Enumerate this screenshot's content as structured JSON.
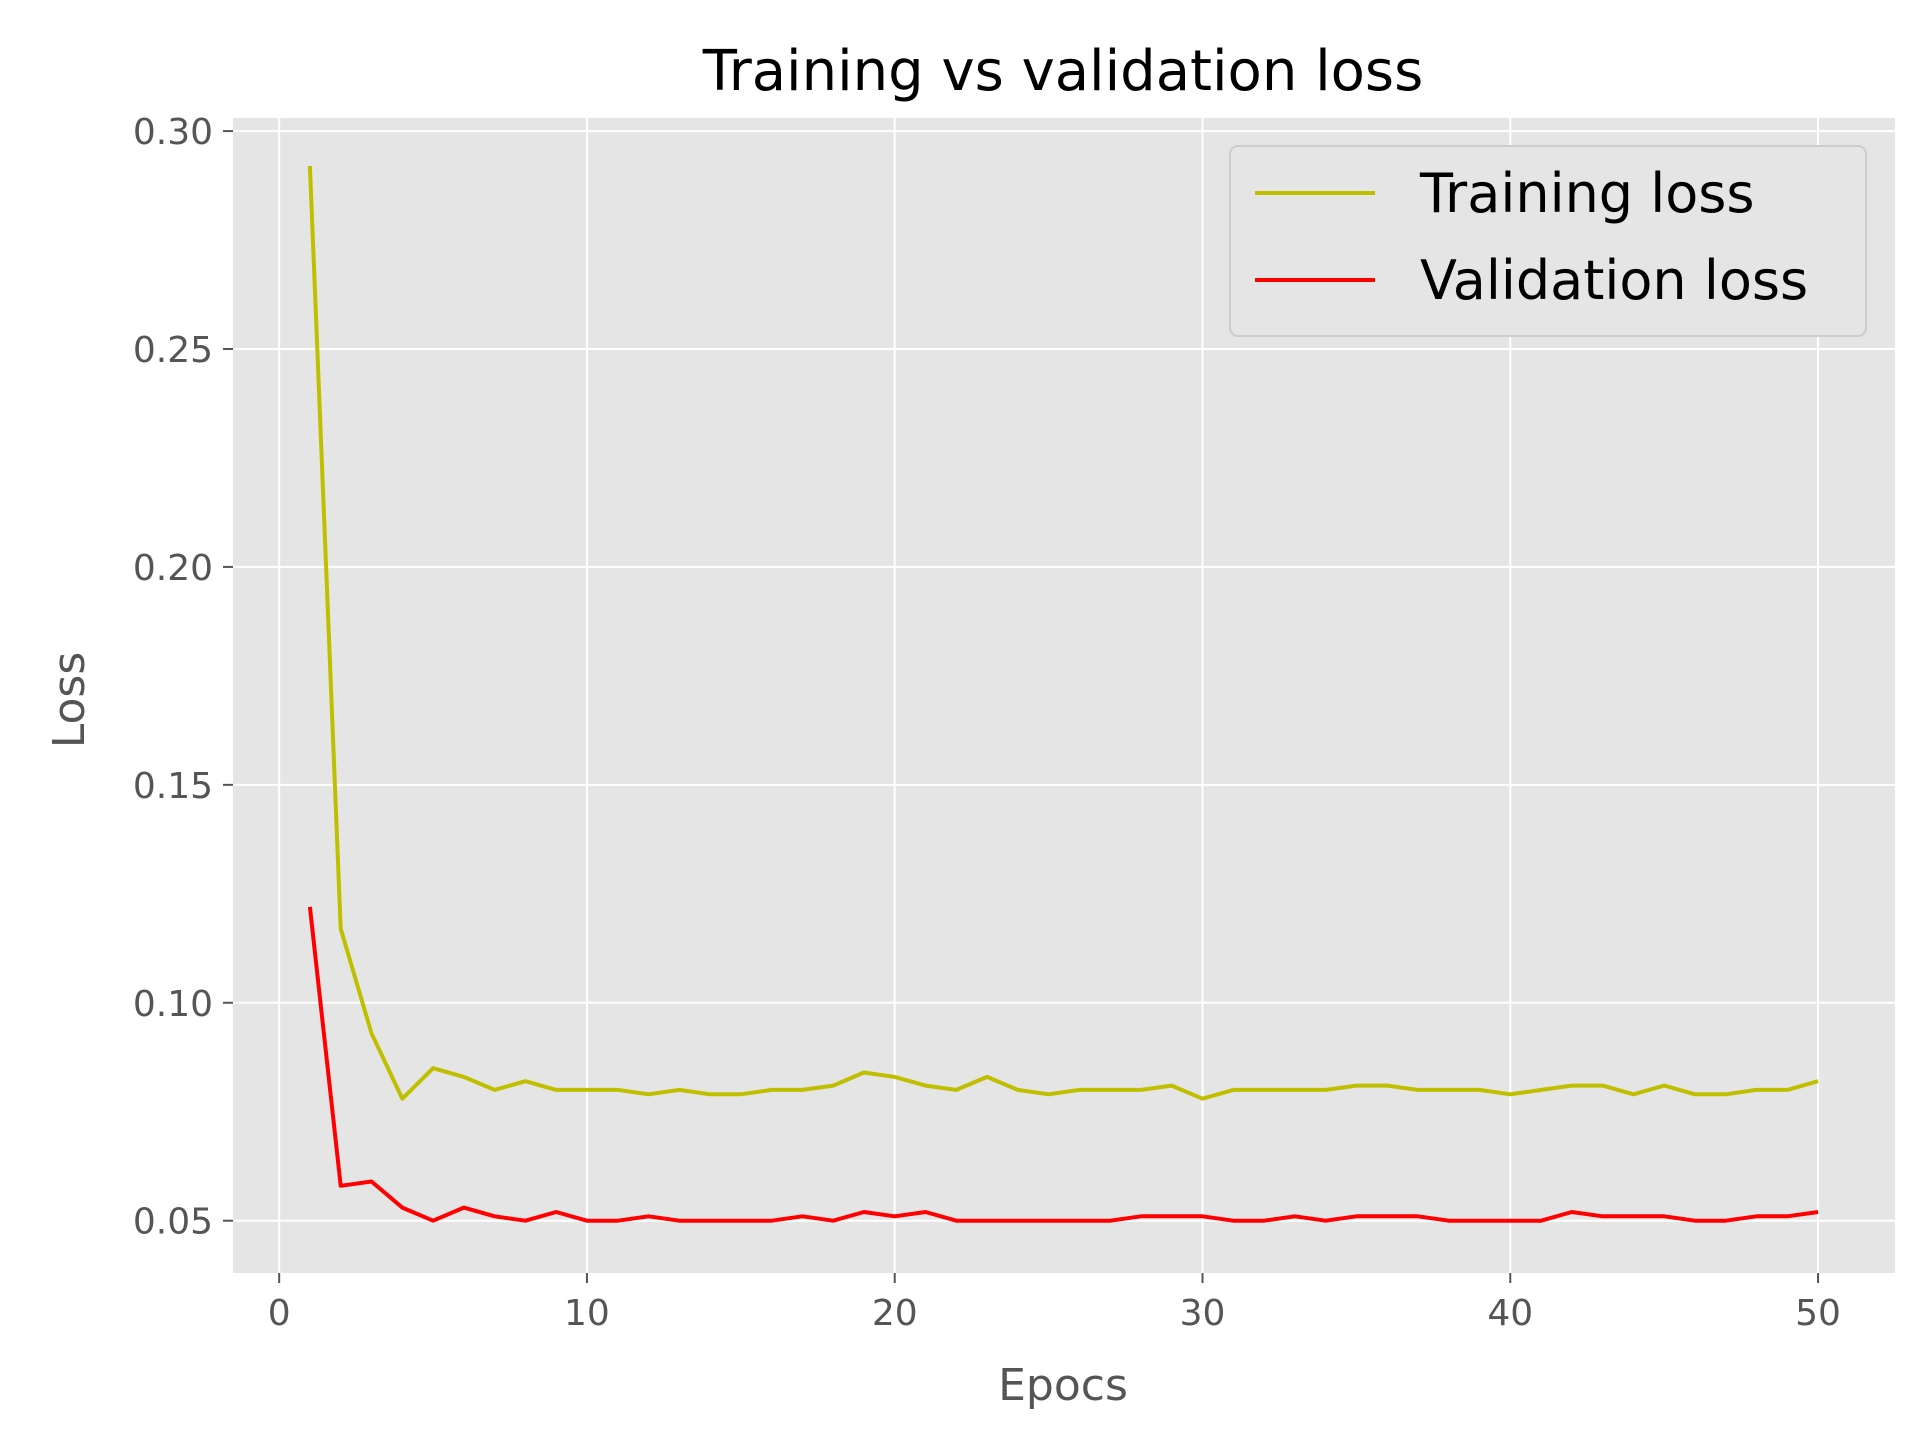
{
  "chart_data": {
    "type": "line",
    "title": "Training vs validation loss",
    "xlabel": "Epocs",
    "ylabel": "Loss",
    "xlim": [
      -1.5,
      52.5
    ],
    "ylim": [
      0.038,
      0.303
    ],
    "xticks": [
      0,
      10,
      20,
      30,
      40,
      50
    ],
    "xtick_labels": [
      "0",
      "10",
      "20",
      "30",
      "40",
      "50"
    ],
    "yticks": [
      0.05,
      0.1,
      0.15,
      0.2,
      0.25,
      0.3
    ],
    "ytick_labels": [
      "0.05",
      "0.10",
      "0.15",
      "0.20",
      "0.25",
      "0.30"
    ],
    "grid": true,
    "legend_position": "top-right",
    "x": [
      1,
      2,
      3,
      4,
      5,
      6,
      7,
      8,
      9,
      10,
      11,
      12,
      13,
      14,
      15,
      16,
      17,
      18,
      19,
      20,
      21,
      22,
      23,
      24,
      25,
      26,
      27,
      28,
      29,
      30,
      31,
      32,
      33,
      34,
      35,
      36,
      37,
      38,
      39,
      40,
      41,
      42,
      43,
      44,
      45,
      46,
      47,
      48,
      49,
      50
    ],
    "series": [
      {
        "name": "Training loss",
        "color": "#bfbf00",
        "values": [
          0.292,
          0.117,
          0.093,
          0.078,
          0.085,
          0.083,
          0.08,
          0.082,
          0.08,
          0.08,
          0.08,
          0.079,
          0.08,
          0.079,
          0.079,
          0.08,
          0.08,
          0.081,
          0.084,
          0.083,
          0.081,
          0.08,
          0.083,
          0.08,
          0.079,
          0.08,
          0.08,
          0.08,
          0.081,
          0.078,
          0.08,
          0.08,
          0.08,
          0.08,
          0.081,
          0.081,
          0.08,
          0.08,
          0.08,
          0.079,
          0.08,
          0.081,
          0.081,
          0.079,
          0.081,
          0.079,
          0.079,
          0.08,
          0.08,
          0.082
        ]
      },
      {
        "name": "Validation loss",
        "color": "#ff0000",
        "values": [
          0.122,
          0.058,
          0.059,
          0.053,
          0.05,
          0.053,
          0.051,
          0.05,
          0.052,
          0.05,
          0.05,
          0.051,
          0.05,
          0.05,
          0.05,
          0.05,
          0.051,
          0.05,
          0.052,
          0.051,
          0.052,
          0.05,
          0.05,
          0.05,
          0.05,
          0.05,
          0.05,
          0.051,
          0.051,
          0.051,
          0.05,
          0.05,
          0.051,
          0.05,
          0.051,
          0.051,
          0.051,
          0.05,
          0.05,
          0.05,
          0.05,
          0.052,
          0.051,
          0.051,
          0.051,
          0.05,
          0.05,
          0.051,
          0.051,
          0.052
        ]
      }
    ]
  }
}
